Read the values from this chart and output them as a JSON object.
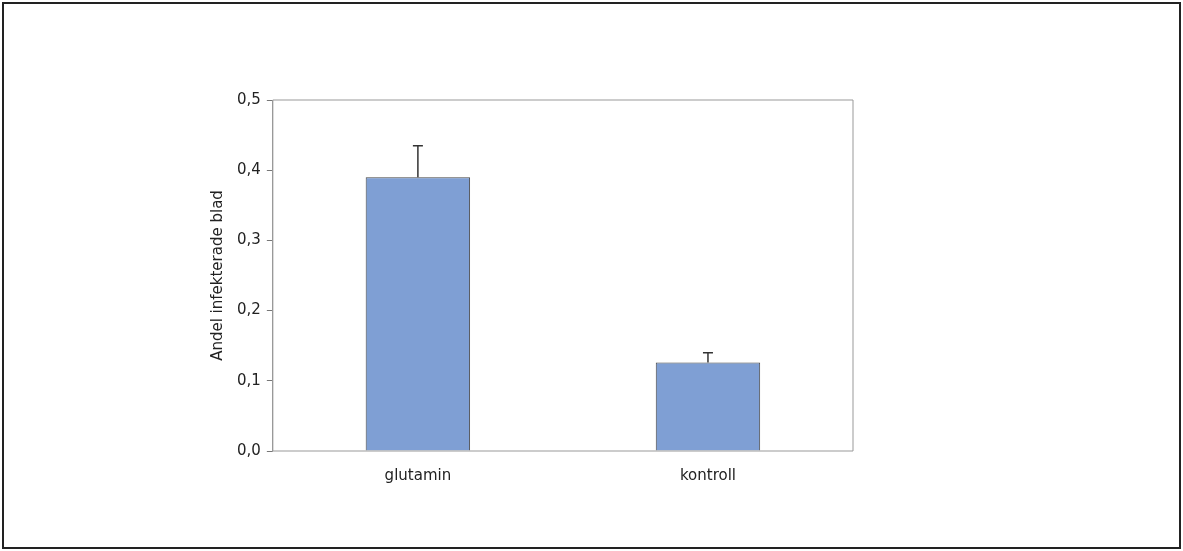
{
  "chart_data": {
    "type": "bar",
    "ylabel": "Andel infekterade blad",
    "categories": [
      "glutamin",
      "kontroll"
    ],
    "values": [
      0.39,
      0.126
    ],
    "errors": [
      [
        0.39,
        0.435
      ],
      [
        0.126,
        0.14
      ]
    ],
    "color": "#7f9fd4",
    "ylim": [
      0,
      0.5
    ],
    "yticks": [
      {
        "value": 0,
        "label": "0,0"
      },
      {
        "value": 0.1,
        "label": "0,1"
      },
      {
        "value": 0.2,
        "label": "0,2"
      },
      {
        "value": 0.3,
        "label": "0,3"
      },
      {
        "value": 0.4,
        "label": "0,4"
      },
      {
        "value": 0.5,
        "label": "0,5"
      }
    ],
    "grid": false,
    "legend": false
  }
}
